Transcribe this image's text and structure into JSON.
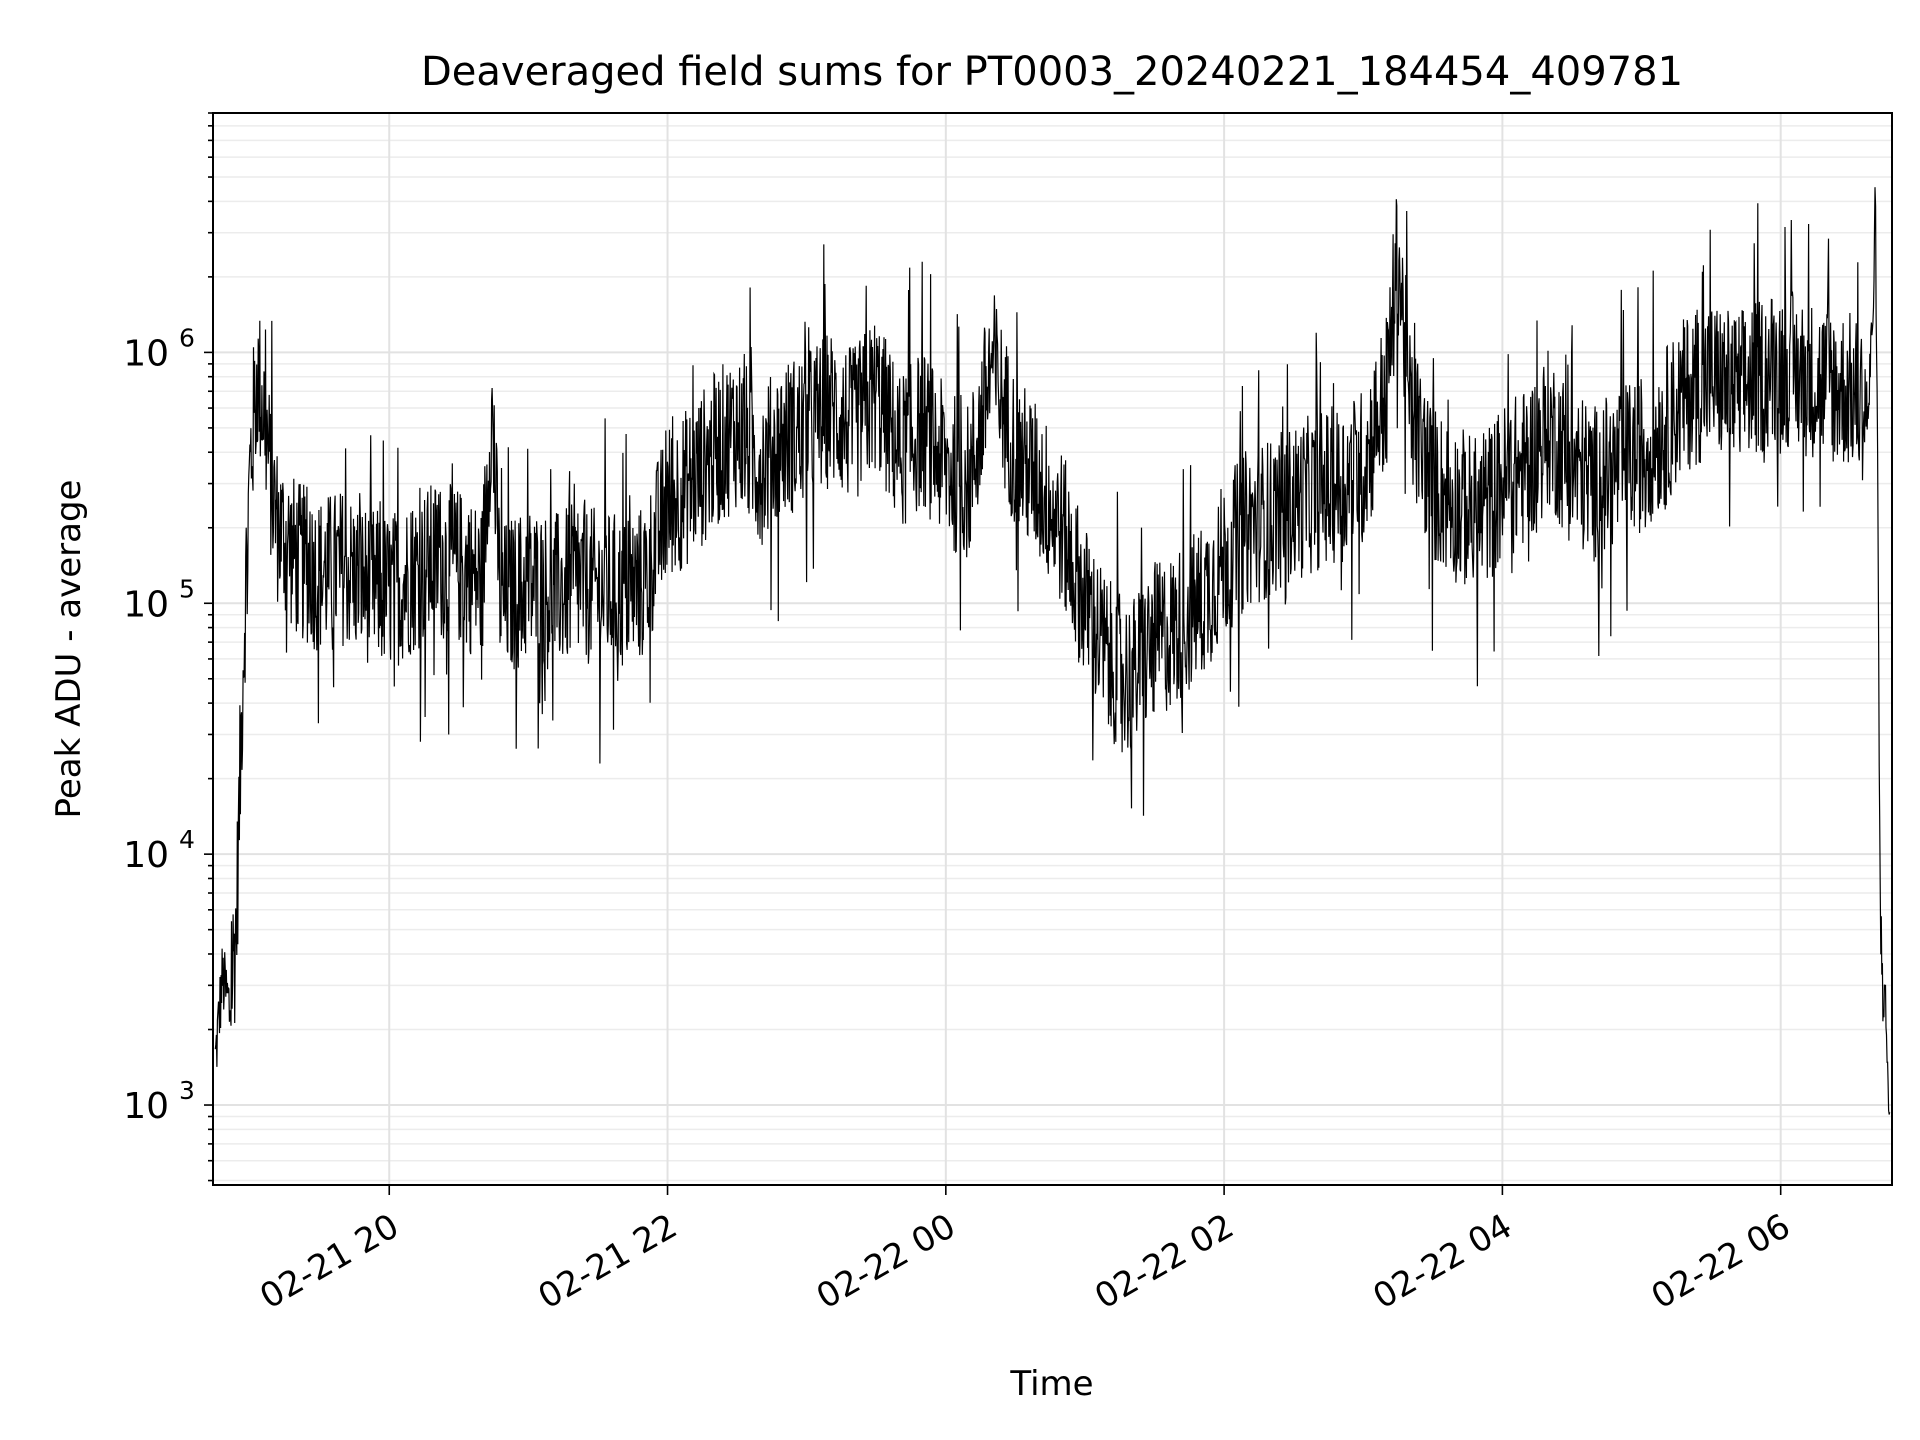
{
  "chart_data": {
    "type": "line",
    "title": "Deaveraged field sums for PT0003_20240221_184454_409781",
    "xlabel": "Time",
    "ylabel": "Peak ADU - average",
    "yscale": "log",
    "ylim": [
      480,
      9000000
    ],
    "xlim": [
      "2024-02-21T18:44:00",
      "2024-02-22T06:48:00"
    ],
    "grid": "both (major and minor)",
    "line_color": "#000000",
    "x_ticks": [
      {
        "value": "2024-02-21T20:00:00",
        "label": "02-21 20"
      },
      {
        "value": "2024-02-21T22:00:00",
        "label": "02-21 22"
      },
      {
        "value": "2024-02-22T00:00:00",
        "label": "02-22 00"
      },
      {
        "value": "2024-02-22T02:00:00",
        "label": "02-22 02"
      },
      {
        "value": "2024-02-22T04:00:00",
        "label": "02-22 04"
      },
      {
        "value": "2024-02-22T06:00:00",
        "label": "02-22 06"
      }
    ],
    "y_ticks": [
      {
        "value": 1000,
        "label_base": "10",
        "label_exp": "3"
      },
      {
        "value": 10000,
        "label_base": "10",
        "label_exp": "4"
      },
      {
        "value": 100000,
        "label_base": "10",
        "label_exp": "5"
      },
      {
        "value": 1000000,
        "label_base": "10",
        "label_exp": "6"
      }
    ],
    "series": [
      {
        "x": [
          "2024-02-21T18:45:00",
          "2024-02-21T18:48:00",
          "2024-02-21T18:51:00",
          "2024-02-21T18:54:00",
          "2024-02-21T18:57:00",
          "2024-02-21T19:00:00",
          "2024-02-21T19:03:00",
          "2024-02-21T19:06:00",
          "2024-02-21T19:09:00",
          "2024-02-21T19:12:00",
          "2024-02-21T19:15:00",
          "2024-02-21T19:20:00",
          "2024-02-21T19:30:00",
          "2024-02-21T19:40:00",
          "2024-02-21T19:50:00",
          "2024-02-21T20:00:00",
          "2024-02-21T20:10:00",
          "2024-02-21T20:20:00",
          "2024-02-21T20:30:00",
          "2024-02-21T20:40:00",
          "2024-02-21T20:44:00",
          "2024-02-21T20:48:00",
          "2024-02-21T21:00:00",
          "2024-02-21T21:10:00",
          "2024-02-21T21:20:00",
          "2024-02-21T21:30:00",
          "2024-02-21T21:40:00",
          "2024-02-21T21:50:00",
          "2024-02-21T22:00:00",
          "2024-02-21T22:10:00",
          "2024-02-21T22:20:00",
          "2024-02-21T22:30:00",
          "2024-02-21T22:40:00",
          "2024-02-21T22:50:00",
          "2024-02-21T23:00:00",
          "2024-02-21T23:10:00",
          "2024-02-21T23:20:00",
          "2024-02-21T23:30:00",
          "2024-02-21T23:40:00",
          "2024-02-21T23:50:00",
          "2024-02-22T00:00:00",
          "2024-02-22T00:10:00",
          "2024-02-22T00:20:00",
          "2024-02-22T00:30:00",
          "2024-02-22T00:40:00",
          "2024-02-22T00:50:00",
          "2024-02-22T01:00:00",
          "2024-02-22T01:10:00",
          "2024-02-22T01:20:00",
          "2024-02-22T01:30:00",
          "2024-02-22T01:40:00",
          "2024-02-22T01:50:00",
          "2024-02-22T02:00:00",
          "2024-02-22T02:10:00",
          "2024-02-22T02:20:00",
          "2024-02-22T02:30:00",
          "2024-02-22T02:40:00",
          "2024-02-22T02:50:00",
          "2024-02-22T03:00:00",
          "2024-02-22T03:10:00",
          "2024-02-22T03:15:00",
          "2024-02-22T03:20:00",
          "2024-02-22T03:30:00",
          "2024-02-22T03:40:00",
          "2024-02-22T03:50:00",
          "2024-02-22T04:00:00",
          "2024-02-22T04:10:00",
          "2024-02-22T04:20:00",
          "2024-02-22T04:30:00",
          "2024-02-22T04:40:00",
          "2024-02-22T04:50:00",
          "2024-02-22T05:00:00",
          "2024-02-22T05:10:00",
          "2024-02-22T05:20:00",
          "2024-02-22T05:30:00",
          "2024-02-22T05:40:00",
          "2024-02-22T05:50:00",
          "2024-02-22T06:00:00",
          "2024-02-22T06:10:00",
          "2024-02-22T06:20:00",
          "2024-02-22T06:30:00",
          "2024-02-22T06:38:00",
          "2024-02-22T06:41:00",
          "2024-02-22T06:43:00",
          "2024-02-22T06:45:00",
          "2024-02-22T06:47:00"
        ],
        "y": [
          1500,
          3200,
          2500,
          5000,
          60000,
          350000,
          800000,
          600000,
          300000,
          200000,
          180000,
          150000,
          130000,
          140000,
          120000,
          110000,
          130000,
          150000,
          140000,
          120000,
          600000,
          100000,
          120000,
          110000,
          120000,
          115000,
          110000,
          120000,
          250000,
          300000,
          400000,
          500000,
          350000,
          450000,
          500000,
          600000,
          500000,
          700000,
          400000,
          500000,
          350000,
          300000,
          900000,
          400000,
          300000,
          200000,
          100000,
          60000,
          50000,
          70000,
          80000,
          100000,
          150000,
          200000,
          220000,
          250000,
          280000,
          300000,
          350000,
          700000,
          2500000,
          600000,
          300000,
          250000,
          220000,
          300000,
          350000,
          500000,
          350000,
          300000,
          350000,
          400000,
          500000,
          700000,
          800000,
          700000,
          800000,
          900000,
          800000,
          750000,
          700000,
          600000,
          3000000,
          5000,
          2500,
          900
        ]
      }
    ]
  }
}
